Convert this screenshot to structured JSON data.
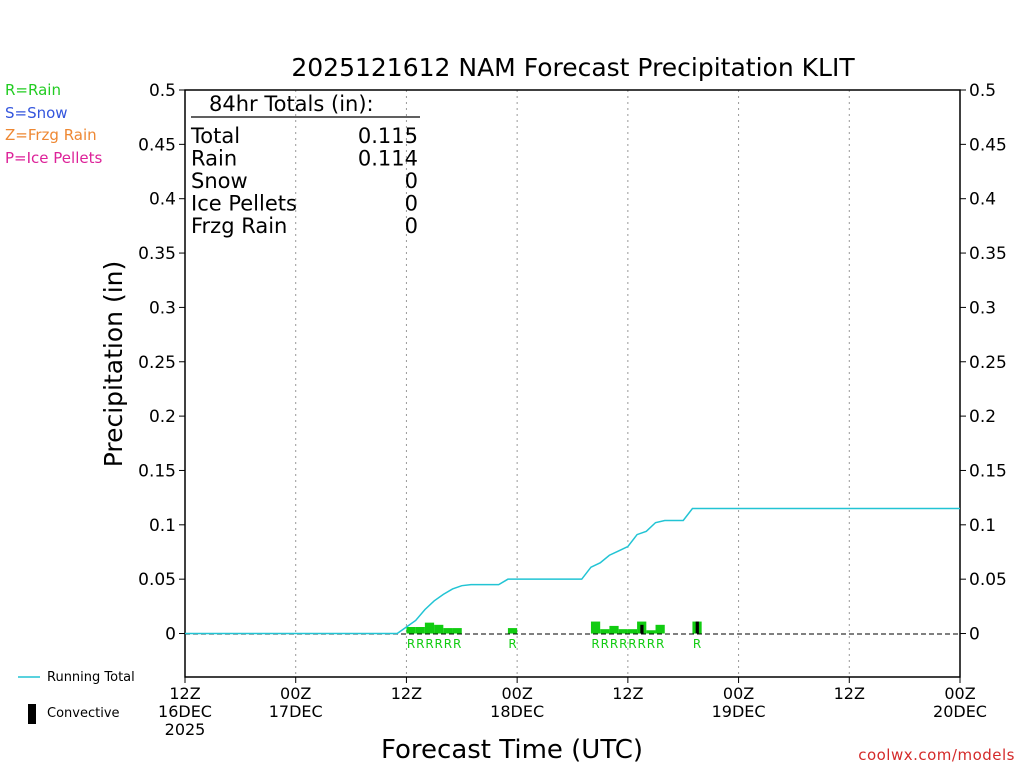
{
  "title": "2025121612 NAM Forecast Precipitation KLIT",
  "credit": "coolwx.com/models",
  "precip_types": [
    {
      "label": "R=Rain",
      "color": "#22cc22"
    },
    {
      "label": "S=Snow",
      "color": "#3355dd"
    },
    {
      "label": "Z=Frzg Rain",
      "color": "#ee8833"
    },
    {
      "label": "P=Ice Pellets",
      "color": "#dd2299"
    }
  ],
  "totals_box": {
    "header": "84hr Totals (in):",
    "rows": [
      {
        "label": "Total",
        "value": "0.115"
      },
      {
        "label": "Rain",
        "value": "0.114"
      },
      {
        "label": "Snow",
        "value": "0"
      },
      {
        "label": "Ice Pellets",
        "value": "0"
      },
      {
        "label": "Frzg Rain",
        "value": "0"
      }
    ]
  },
  "key": {
    "running_total": "Running Total",
    "convective": "Convective",
    "running_total_color": "#22c4d4",
    "convective_color": "#000000"
  },
  "colors": {
    "rain": "#11cc11",
    "running_total": "#22c4d4"
  },
  "chart_data": {
    "type": "bar",
    "title": "2025121612 NAM Forecast Precipitation KLIT",
    "xlabel": "Forecast Time (UTC)",
    "ylabel": "Precipitation (in)",
    "ylim": [
      -0.04,
      0.5
    ],
    "xlim_hours": [
      0,
      84
    ],
    "y_ticks": [
      0,
      0.05,
      0.1,
      0.15,
      0.2,
      0.25,
      0.3,
      0.35,
      0.4,
      0.45,
      0.5
    ],
    "y_tick_labels": [
      "0",
      "0.05",
      "0.1",
      "0.15",
      "0.2",
      "0.25",
      "0.3",
      "0.35",
      "0.4",
      "0.45",
      "0.5"
    ],
    "x_ticks": [
      {
        "hour": 0,
        "lines": [
          "12Z",
          "16DEC",
          "2025"
        ]
      },
      {
        "hour": 12,
        "lines": [
          "00Z",
          "17DEC"
        ]
      },
      {
        "hour": 24,
        "lines": [
          "12Z",
          ""
        ]
      },
      {
        "hour": 36,
        "lines": [
          "00Z",
          "18DEC"
        ]
      },
      {
        "hour": 48,
        "lines": [
          "12Z",
          ""
        ]
      },
      {
        "hour": 60,
        "lines": [
          "00Z",
          "19DEC"
        ]
      },
      {
        "hour": 72,
        "lines": [
          "12Z",
          ""
        ]
      },
      {
        "hour": 84,
        "lines": [
          "00Z",
          "20DEC"
        ]
      }
    ],
    "grid_hours": [
      12,
      24,
      36,
      48,
      60,
      72
    ],
    "hourly_precip": [
      {
        "hour": 24,
        "value": 0.006,
        "type": "R",
        "convective": 0
      },
      {
        "hour": 25,
        "value": 0.006,
        "type": "R",
        "convective": 0
      },
      {
        "hour": 26,
        "value": 0.01,
        "type": "R",
        "convective": 0
      },
      {
        "hour": 27,
        "value": 0.008,
        "type": "R",
        "convective": 0
      },
      {
        "hour": 28,
        "value": 0.005,
        "type": "R",
        "convective": 0
      },
      {
        "hour": 29,
        "value": 0.005,
        "type": "R",
        "convective": 0
      },
      {
        "hour": 35,
        "value": 0.005,
        "type": "R",
        "convective": 0
      },
      {
        "hour": 44,
        "value": 0.011,
        "type": "R",
        "convective": 0
      },
      {
        "hour": 45,
        "value": 0.004,
        "type": "R",
        "convective": 0
      },
      {
        "hour": 46,
        "value": 0.007,
        "type": "R",
        "convective": 0
      },
      {
        "hour": 47,
        "value": 0.004,
        "type": "R",
        "convective": 0
      },
      {
        "hour": 48,
        "value": 0.004,
        "type": "R",
        "convective": 0
      },
      {
        "hour": 49,
        "value": 0.011,
        "type": "R",
        "convective": 0.008
      },
      {
        "hour": 50,
        "value": 0.003,
        "type": "R",
        "convective": 0
      },
      {
        "hour": 51,
        "value": 0.008,
        "type": "R",
        "convective": 0
      },
      {
        "hour": 55,
        "value": 0.011,
        "type": "R",
        "convective": 0.011
      }
    ],
    "type_labels": [
      {
        "hour": 24,
        "text": "R"
      },
      {
        "hour": 25,
        "text": "R"
      },
      {
        "hour": 26,
        "text": "R"
      },
      {
        "hour": 27,
        "text": "R"
      },
      {
        "hour": 28,
        "text": "R"
      },
      {
        "hour": 29,
        "text": "R"
      },
      {
        "hour": 35,
        "text": "R"
      },
      {
        "hour": 44,
        "text": "R"
      },
      {
        "hour": 45,
        "text": "R"
      },
      {
        "hour": 46,
        "text": "R"
      },
      {
        "hour": 47,
        "text": "R"
      },
      {
        "hour": 48,
        "text": "R"
      },
      {
        "hour": 49,
        "text": "R"
      },
      {
        "hour": 50,
        "text": "R"
      },
      {
        "hour": 51,
        "text": "R"
      },
      {
        "hour": 55,
        "text": "R"
      }
    ],
    "running_total": [
      [
        0,
        0
      ],
      [
        23,
        0
      ],
      [
        24,
        0.006
      ],
      [
        25,
        0.012
      ],
      [
        26,
        0.022
      ],
      [
        27,
        0.03
      ],
      [
        28,
        0.036
      ],
      [
        29,
        0.041
      ],
      [
        30,
        0.044
      ],
      [
        31,
        0.045
      ],
      [
        34,
        0.045
      ],
      [
        35,
        0.05
      ],
      [
        43,
        0.05
      ],
      [
        44,
        0.061
      ],
      [
        45,
        0.065
      ],
      [
        46,
        0.072
      ],
      [
        47,
        0.076
      ],
      [
        48,
        0.08
      ],
      [
        49,
        0.091
      ],
      [
        50,
        0.094
      ],
      [
        51,
        0.102
      ],
      [
        52,
        0.104
      ],
      [
        54,
        0.104
      ],
      [
        55,
        0.115
      ],
      [
        84,
        0.115
      ]
    ]
  }
}
